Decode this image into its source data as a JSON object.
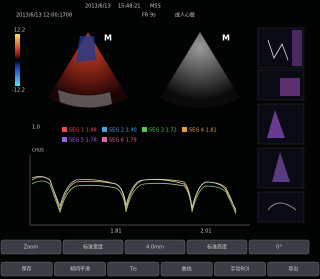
{
  "header": {
    "date": "2013/6/13",
    "time": "15:48:21",
    "probe": "M5S",
    "mode": "成人心脏",
    "patient": "2013/6/13 12:00:1708",
    "fr": "FR 9s"
  },
  "images": {
    "left_logo": "M",
    "right_logo": "M",
    "scale_top": "12.2",
    "scale_bottom": "-12.2"
  },
  "legend": [
    "SEG 1 1.88",
    "SEG 2 1.90",
    "SEG 3 1.72",
    "SEG 4 1.81",
    "SEG 5 1.78",
    "SEG 6 1.79"
  ],
  "curve_panel": {
    "y_label": "cm/s",
    "x_labels": [
      "1.81",
      "2.01"
    ],
    "marker": "1.0"
  },
  "buttons": {
    "row1": [
      "Zoom",
      "标准宽度",
      "4.0mm",
      "标准高度",
      "0°"
    ],
    "row2": [
      "保存",
      "帧间平滑",
      "Tis",
      "曲线",
      "手动ROI",
      "导出"
    ]
  }
}
